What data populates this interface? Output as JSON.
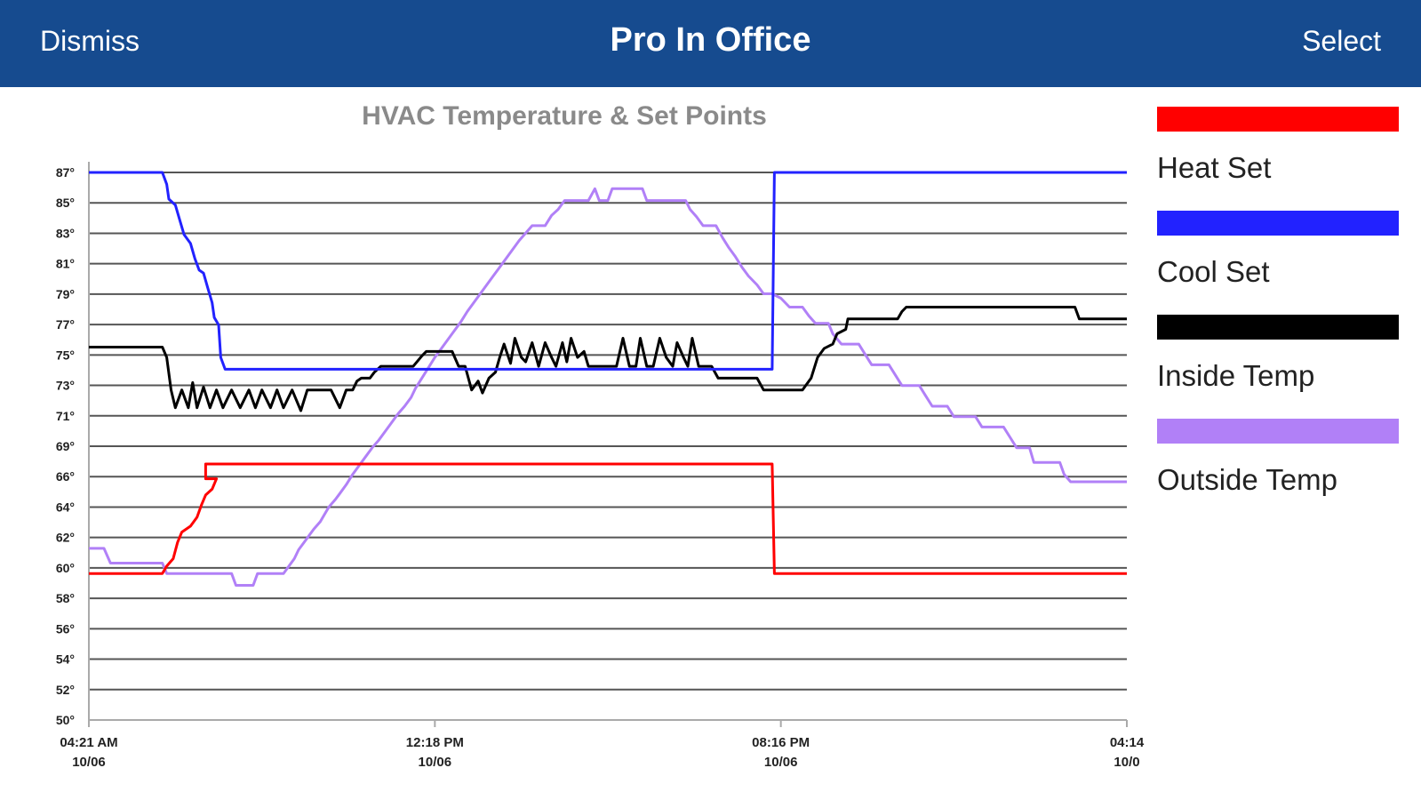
{
  "header": {
    "dismiss_label": "Dismiss",
    "title": "Pro In Office",
    "select_label": "Select",
    "background_color": "#164b8f"
  },
  "chart_data": {
    "type": "line",
    "title": "HVAC Temperature & Set Points",
    "xlabel": "",
    "ylabel": "",
    "ylim": [
      50,
      87
    ],
    "y_ticks": [
      "87°",
      "85°",
      "83°",
      "81°",
      "79°",
      "77°",
      "75°",
      "73°",
      "71°",
      "69°",
      "66°",
      "64°",
      "62°",
      "60°",
      "58°",
      "56°",
      "54°",
      "52°",
      "50°"
    ],
    "x_range": [
      0,
      24
    ],
    "x_ticks": [
      {
        "x": 0,
        "time": "04:21 AM",
        "date": "10/06"
      },
      {
        "x": 8,
        "time": "12:18 PM",
        "date": "10/06"
      },
      {
        "x": 16,
        "time": "08:16 PM",
        "date": "10/06"
      },
      {
        "x": 24,
        "time": "04:14",
        "date": "10/0"
      }
    ],
    "grid": true,
    "legend_position": "right",
    "series": [
      {
        "name": "Heat Set",
        "color": "#ff0000",
        "points": [
          [
            0,
            59.9
          ],
          [
            1.7,
            59.9
          ],
          [
            1.8,
            60.4
          ],
          [
            1.95,
            60.9
          ],
          [
            2.05,
            62
          ],
          [
            2.15,
            62.7
          ],
          [
            2.35,
            63.1
          ],
          [
            2.5,
            63.7
          ],
          [
            2.6,
            64.5
          ],
          [
            2.7,
            65.2
          ],
          [
            2.85,
            65.6
          ],
          [
            2.95,
            66.3
          ],
          [
            2.7,
            66.3
          ],
          [
            2.7,
            66.3
          ],
          [
            2.7,
            67.3
          ],
          [
            15.8,
            67.3
          ],
          [
            15.85,
            59.9
          ],
          [
            24,
            59.9
          ]
        ]
      },
      {
        "name": "Cool Set",
        "color": "#2222ff",
        "points": [
          [
            0,
            87
          ],
          [
            1.7,
            87
          ],
          [
            1.8,
            86.2
          ],
          [
            1.85,
            85.2
          ],
          [
            2.0,
            84.8
          ],
          [
            2.1,
            83.8
          ],
          [
            2.2,
            82.8
          ],
          [
            2.35,
            82.2
          ],
          [
            2.45,
            81.2
          ],
          [
            2.55,
            80.4
          ],
          [
            2.65,
            80.2
          ],
          [
            2.75,
            79.2
          ],
          [
            2.85,
            78.2
          ],
          [
            2.9,
            77.2
          ],
          [
            3.0,
            76.7
          ],
          [
            3.05,
            74.5
          ],
          [
            3.15,
            73.7
          ],
          [
            15.8,
            73.7
          ],
          [
            15.85,
            87
          ],
          [
            24,
            87
          ]
        ]
      },
      {
        "name": "Inside Temp",
        "color": "#000000",
        "points": [
          [
            0,
            75.2
          ],
          [
            1.7,
            75.2
          ],
          [
            1.8,
            74.5
          ],
          [
            1.9,
            72.3
          ],
          [
            2.0,
            71.1
          ],
          [
            2.15,
            72.3
          ],
          [
            2.3,
            71.1
          ],
          [
            2.4,
            72.8
          ],
          [
            2.5,
            71.1
          ],
          [
            2.65,
            72.5
          ],
          [
            2.8,
            71.1
          ],
          [
            2.95,
            72.3
          ],
          [
            3.1,
            71.1
          ],
          [
            3.3,
            72.3
          ],
          [
            3.5,
            71.1
          ],
          [
            3.7,
            72.3
          ],
          [
            3.85,
            71.1
          ],
          [
            4.0,
            72.3
          ],
          [
            4.2,
            71.1
          ],
          [
            4.35,
            72.3
          ],
          [
            4.5,
            71.1
          ],
          [
            4.7,
            72.3
          ],
          [
            4.9,
            70.9
          ],
          [
            5.05,
            72.3
          ],
          [
            5.6,
            72.3
          ],
          [
            5.8,
            71.1
          ],
          [
            5.95,
            72.3
          ],
          [
            6.1,
            72.3
          ],
          [
            6.2,
            72.9
          ],
          [
            6.3,
            73.1
          ],
          [
            6.5,
            73.1
          ],
          [
            6.6,
            73.5
          ],
          [
            6.75,
            73.9
          ],
          [
            7.5,
            73.9
          ],
          [
            7.7,
            74.6
          ],
          [
            7.8,
            74.9
          ],
          [
            8.4,
            74.9
          ],
          [
            8.55,
            73.9
          ],
          [
            8.7,
            73.9
          ],
          [
            8.85,
            72.3
          ],
          [
            9.0,
            72.9
          ],
          [
            9.1,
            72.1
          ],
          [
            9.25,
            73.1
          ],
          [
            9.4,
            73.5
          ],
          [
            9.5,
            74.5
          ],
          [
            9.6,
            75.4
          ],
          [
            9.75,
            74.1
          ],
          [
            9.85,
            75.8
          ],
          [
            10.0,
            74.5
          ],
          [
            10.1,
            74.2
          ],
          [
            10.25,
            75.5
          ],
          [
            10.4,
            73.9
          ],
          [
            10.55,
            75.5
          ],
          [
            10.7,
            74.5
          ],
          [
            10.8,
            73.9
          ],
          [
            10.95,
            75.5
          ],
          [
            11.05,
            74.2
          ],
          [
            11.15,
            75.8
          ],
          [
            11.3,
            74.5
          ],
          [
            11.45,
            74.9
          ],
          [
            11.55,
            73.9
          ],
          [
            12.2,
            73.9
          ],
          [
            12.35,
            75.8
          ],
          [
            12.5,
            73.9
          ],
          [
            12.65,
            73.9
          ],
          [
            12.75,
            75.8
          ],
          [
            12.9,
            73.9
          ],
          [
            13.05,
            73.9
          ],
          [
            13.2,
            75.8
          ],
          [
            13.35,
            74.5
          ],
          [
            13.5,
            73.9
          ],
          [
            13.6,
            75.5
          ],
          [
            13.75,
            74.5
          ],
          [
            13.85,
            73.9
          ],
          [
            13.95,
            75.8
          ],
          [
            14.1,
            73.9
          ],
          [
            14.2,
            73.9
          ],
          [
            14.4,
            73.9
          ],
          [
            14.55,
            73.1
          ],
          [
            15.45,
            73.1
          ],
          [
            15.6,
            72.3
          ],
          [
            16.5,
            72.3
          ],
          [
            16.7,
            73.1
          ],
          [
            16.85,
            74.5
          ],
          [
            17.0,
            75.1
          ],
          [
            17.2,
            75.4
          ],
          [
            17.3,
            76.1
          ],
          [
            17.5,
            76.4
          ],
          [
            17.55,
            77.1
          ],
          [
            18.7,
            77.1
          ],
          [
            18.8,
            77.6
          ],
          [
            18.9,
            77.9
          ],
          [
            22.8,
            77.9
          ],
          [
            22.9,
            77.1
          ],
          [
            24,
            77.1
          ]
        ]
      },
      {
        "name": "Outside Temp",
        "color": "#b180f7",
        "points": [
          [
            0,
            61.6
          ],
          [
            0.35,
            61.6
          ],
          [
            0.5,
            60.6
          ],
          [
            1.7,
            60.6
          ],
          [
            1.8,
            59.9
          ],
          [
            3.3,
            59.9
          ],
          [
            3.4,
            59.1
          ],
          [
            3.8,
            59.1
          ],
          [
            3.9,
            59.9
          ],
          [
            4.5,
            59.9
          ],
          [
            4.6,
            60.3
          ],
          [
            4.75,
            60.9
          ],
          [
            4.85,
            61.5
          ],
          [
            5.0,
            62.1
          ],
          [
            5.1,
            62.5
          ],
          [
            5.2,
            62.9
          ],
          [
            5.35,
            63.4
          ],
          [
            5.45,
            63.9
          ],
          [
            5.55,
            64.4
          ],
          [
            5.7,
            64.9
          ],
          [
            5.8,
            65.3
          ],
          [
            5.95,
            65.9
          ],
          [
            6.1,
            66.6
          ],
          [
            6.25,
            67.2
          ],
          [
            6.4,
            67.8
          ],
          [
            6.55,
            68.4
          ],
          [
            6.7,
            68.9
          ],
          [
            6.85,
            69.5
          ],
          [
            7.0,
            70.1
          ],
          [
            7.15,
            70.7
          ],
          [
            7.3,
            71.2
          ],
          [
            7.45,
            71.8
          ],
          [
            7.55,
            72.4
          ],
          [
            7.7,
            73.1
          ],
          [
            7.85,
            73.8
          ],
          [
            8.0,
            74.5
          ],
          [
            8.15,
            75.1
          ],
          [
            8.3,
            75.7
          ],
          [
            8.45,
            76.3
          ],
          [
            8.6,
            76.9
          ],
          [
            8.75,
            77.6
          ],
          [
            8.9,
            78.2
          ],
          [
            9.05,
            78.8
          ],
          [
            9.2,
            79.4
          ],
          [
            9.35,
            80.0
          ],
          [
            9.5,
            80.6
          ],
          [
            9.65,
            81.2
          ],
          [
            9.8,
            81.8
          ],
          [
            9.95,
            82.4
          ],
          [
            10.1,
            82.9
          ],
          [
            10.25,
            83.4
          ],
          [
            10.55,
            83.4
          ],
          [
            10.7,
            84.1
          ],
          [
            10.85,
            84.5
          ],
          [
            11.0,
            85.1
          ],
          [
            11.55,
            85.1
          ],
          [
            11.7,
            85.9
          ],
          [
            11.8,
            85.1
          ],
          [
            12.0,
            85.1
          ],
          [
            12.1,
            85.9
          ],
          [
            12.8,
            85.9
          ],
          [
            12.9,
            85.1
          ],
          [
            13.8,
            85.1
          ],
          [
            13.9,
            84.5
          ],
          [
            14.05,
            84.0
          ],
          [
            14.2,
            83.4
          ],
          [
            14.5,
            83.4
          ],
          [
            14.65,
            82.6
          ],
          [
            14.8,
            81.9
          ],
          [
            14.95,
            81.3
          ],
          [
            15.1,
            80.6
          ],
          [
            15.25,
            80.0
          ],
          [
            15.45,
            79.4
          ],
          [
            15.6,
            78.8
          ],
          [
            15.8,
            78.8
          ],
          [
            16.0,
            78.5
          ],
          [
            16.2,
            77.9
          ],
          [
            16.5,
            77.9
          ],
          [
            16.65,
            77.3
          ],
          [
            16.8,
            76.8
          ],
          [
            17.1,
            76.8
          ],
          [
            17.2,
            76.1
          ],
          [
            17.4,
            75.4
          ],
          [
            17.8,
            75.4
          ],
          [
            17.95,
            74.7
          ],
          [
            18.1,
            74.0
          ],
          [
            18.5,
            74.0
          ],
          [
            18.65,
            73.3
          ],
          [
            18.8,
            72.6
          ],
          [
            19.2,
            72.6
          ],
          [
            19.35,
            71.9
          ],
          [
            19.5,
            71.2
          ],
          [
            19.85,
            71.2
          ],
          [
            20.0,
            70.5
          ],
          [
            20.5,
            70.5
          ],
          [
            20.65,
            69.8
          ],
          [
            21.15,
            69.8
          ],
          [
            21.3,
            69.1
          ],
          [
            21.45,
            68.4
          ],
          [
            21.75,
            68.4
          ],
          [
            21.85,
            67.4
          ],
          [
            22.45,
            67.4
          ],
          [
            22.55,
            66.6
          ],
          [
            22.7,
            66.1
          ],
          [
            24,
            66.1
          ]
        ]
      }
    ]
  }
}
